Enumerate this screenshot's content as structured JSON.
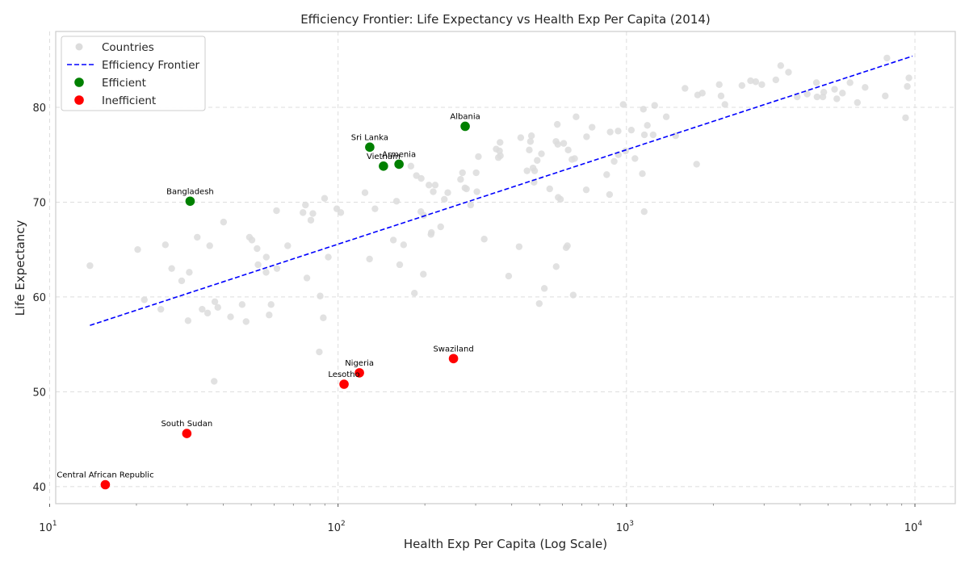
{
  "chart_data": {
    "type": "scatter",
    "title": "Efficiency Frontier: Life Expectancy vs Health Exp Per Capita (2014)",
    "xlabel": "Health Exp Per Capita (Log Scale)",
    "ylabel": "Life Expectancy",
    "x_scale": "log",
    "xlim": [
      10.5,
      13800
    ],
    "ylim": [
      38.2,
      88
    ],
    "x_ticks": [
      {
        "value": 10,
        "base": "10",
        "exp": "1"
      },
      {
        "value": 100,
        "base": "10",
        "exp": "2"
      },
      {
        "value": 1000,
        "base": "10",
        "exp": "3"
      },
      {
        "value": 10000,
        "base": "10",
        "exp": "4"
      }
    ],
    "y_ticks": [
      40,
      50,
      60,
      70,
      80
    ],
    "grid": true,
    "legend_position": "top-left",
    "legend": [
      {
        "label": "Countries",
        "kind": "point",
        "color": "#dcdcdc"
      },
      {
        "label": "Efficiency Frontier",
        "kind": "line",
        "color": "#0000ff"
      },
      {
        "label": "Efficient",
        "kind": "point",
        "color": "#008000"
      },
      {
        "label": "Inefficient",
        "kind": "point",
        "color": "#ff0000"
      }
    ],
    "series": [
      {
        "name": "Countries",
        "color": "#dcdcdc",
        "points": [
          [
            13.8,
            63.3
          ],
          [
            20.2,
            65.0
          ],
          [
            21.3,
            59.7
          ],
          [
            24.3,
            58.7
          ],
          [
            25.2,
            65.5
          ],
          [
            26.5,
            63.0
          ],
          [
            28.7,
            61.7
          ],
          [
            30.2,
            57.5
          ],
          [
            30.5,
            62.6
          ],
          [
            32.5,
            66.3
          ],
          [
            33.8,
            58.7
          ],
          [
            35.3,
            58.3
          ],
          [
            35.9,
            65.4
          ],
          [
            37.2,
            51.1
          ],
          [
            37.4,
            59.5
          ],
          [
            38.3,
            58.9
          ],
          [
            40.1,
            67.9
          ],
          [
            42.4,
            57.9
          ],
          [
            46.5,
            59.2
          ],
          [
            48.0,
            57.4
          ],
          [
            49.3,
            66.3
          ],
          [
            50.3,
            66.0
          ],
          [
            52.4,
            65.1
          ],
          [
            52.8,
            63.4
          ],
          [
            56.3,
            62.6
          ],
          [
            56.4,
            64.2
          ],
          [
            57.7,
            58.1
          ],
          [
            58.6,
            59.2
          ],
          [
            61.2,
            69.1
          ],
          [
            61.4,
            63.0
          ],
          [
            66.9,
            65.4
          ],
          [
            75.6,
            68.9
          ],
          [
            77.1,
            69.7
          ],
          [
            78.0,
            62.0
          ],
          [
            80.5,
            68.1
          ],
          [
            81.8,
            68.8
          ],
          [
            86.1,
            54.2
          ],
          [
            86.7,
            60.1
          ],
          [
            88.9,
            57.8
          ],
          [
            89.8,
            70.4
          ],
          [
            92.5,
            64.2
          ],
          [
            99.0,
            69.3
          ],
          [
            102.2,
            68.9
          ],
          [
            124.0,
            71.0
          ],
          [
            128.6,
            64.0
          ],
          [
            134.3,
            69.3
          ],
          [
            155.5,
            66.0
          ],
          [
            159.5,
            70.1
          ],
          [
            163.6,
            63.4
          ],
          [
            168.8,
            65.5
          ],
          [
            178.9,
            73.8
          ],
          [
            184.0,
            60.4
          ],
          [
            186.9,
            72.8
          ],
          [
            193.7,
            69.0
          ],
          [
            194.2,
            72.5
          ],
          [
            197.6,
            62.4
          ],
          [
            198.3,
            68.6
          ],
          [
            206.6,
            71.8
          ],
          [
            210.0,
            66.6
          ],
          [
            210.7,
            66.8
          ],
          [
            213.8,
            71.1
          ],
          [
            217.2,
            71.8
          ],
          [
            226.9,
            67.4
          ],
          [
            233.6,
            70.3
          ],
          [
            240.1,
            71.0
          ],
          [
            266.0,
            72.4
          ],
          [
            270.0,
            73.1
          ],
          [
            275.4,
            71.5
          ],
          [
            278.8,
            71.4
          ],
          [
            288.2,
            69.7
          ],
          [
            301.2,
            73.1
          ],
          [
            303.0,
            71.1
          ],
          [
            306.6,
            74.8
          ],
          [
            321.2,
            66.1
          ],
          [
            353.4,
            75.6
          ],
          [
            359.6,
            74.7
          ],
          [
            362.9,
            75.4
          ],
          [
            364.4,
            76.3
          ],
          [
            365.4,
            74.9
          ],
          [
            390.4,
            62.2
          ],
          [
            424.4,
            65.3
          ],
          [
            429.9,
            76.8
          ],
          [
            452.0,
            73.3
          ],
          [
            460.3,
            75.5
          ],
          [
            464.5,
            76.4
          ],
          [
            468.4,
            77.0
          ],
          [
            474.2,
            73.6
          ],
          [
            478.0,
            72.1
          ],
          [
            480.4,
            73.3
          ],
          [
            490.3,
            74.4
          ],
          [
            498.4,
            59.3
          ],
          [
            507.2,
            75.1
          ],
          [
            519.1,
            60.9
          ],
          [
            541.8,
            71.4
          ],
          [
            569.6,
            76.4
          ],
          [
            570.6,
            63.2
          ],
          [
            575.7,
            78.2
          ],
          [
            577.9,
            76.1
          ],
          [
            579.7,
            70.5
          ],
          [
            590.4,
            70.3
          ],
          [
            605.8,
            76.2
          ],
          [
            617.6,
            65.2
          ],
          [
            623.9,
            65.4
          ],
          [
            627.9,
            75.5
          ],
          [
            646.9,
            74.5
          ],
          [
            653.7,
            60.2
          ],
          [
            661.0,
            74.6
          ],
          [
            668.8,
            79.0
          ],
          [
            725.3,
            71.3
          ],
          [
            727.1,
            76.9
          ],
          [
            759.8,
            77.9
          ],
          [
            853.9,
            72.9
          ],
          [
            873.7,
            70.8
          ],
          [
            878.0,
            77.4
          ],
          [
            906.3,
            74.3
          ],
          [
            935.4,
            77.5
          ],
          [
            937.2,
            75.0
          ],
          [
            974.2,
            80.3
          ],
          [
            992.9,
            75.4
          ],
          [
            1039.7,
            77.6
          ],
          [
            1070.0,
            74.6
          ],
          [
            1135.1,
            73.0
          ],
          [
            1144.4,
            79.8
          ],
          [
            1151.9,
            69.0
          ],
          [
            1153.7,
            77.1
          ],
          [
            1181.4,
            78.1
          ],
          [
            1237.2,
            77.1
          ],
          [
            1252.1,
            80.2
          ],
          [
            1373.7,
            79.0
          ],
          [
            1480.4,
            77.0
          ],
          [
            1595.5,
            82.0
          ],
          [
            1750.2,
            74.0
          ],
          [
            1764.7,
            81.3
          ],
          [
            1831.9,
            81.5
          ],
          [
            2097.0,
            82.4
          ],
          [
            2127.4,
            81.2
          ],
          [
            2193.8,
            80.3
          ],
          [
            2513.6,
            82.3
          ],
          [
            2692.9,
            82.8
          ],
          [
            2805.8,
            82.7
          ],
          [
            2946.1,
            82.4
          ],
          [
            3295.1,
            82.9
          ],
          [
            3425.5,
            84.4
          ],
          [
            3645.0,
            83.7
          ],
          [
            3907.1,
            81.1
          ],
          [
            4232.0,
            81.4
          ],
          [
            4554.9,
            82.6
          ],
          [
            4578.0,
            81.1
          ],
          [
            4796.1,
            81.1
          ],
          [
            4830.7,
            81.6
          ],
          [
            5265.4,
            81.9
          ],
          [
            5360.3,
            80.9
          ],
          [
            5607.4,
            81.5
          ],
          [
            5956.8,
            82.6
          ],
          [
            6318.1,
            80.5
          ],
          [
            6719.6,
            82.1
          ],
          [
            7890.7,
            81.2
          ],
          [
            7998.0,
            85.2
          ],
          [
            9281.3,
            78.9
          ],
          [
            9410.4,
            82.2
          ],
          [
            9530.6,
            83.1
          ]
        ]
      },
      {
        "name": "Efficiency Frontier",
        "color": "#0000ff",
        "points": [
          [
            13.8,
            57.0
          ],
          [
            9800,
            85.4
          ]
        ]
      },
      {
        "name": "Efficient",
        "color": "#008000",
        "points": [
          {
            "x": 30.7,
            "y": 70.1,
            "label": "Bangladesh"
          },
          {
            "x": 128.8,
            "y": 75.8,
            "label": "Sri Lanka"
          },
          {
            "x": 143.7,
            "y": 73.8,
            "label": "Vietnam"
          },
          {
            "x": 162.7,
            "y": 74.0,
            "label": "Armenia"
          },
          {
            "x": 275.9,
            "y": 78.0,
            "label": "Albania"
          }
        ]
      },
      {
        "name": "Inefficient",
        "color": "#ff0000",
        "points": [
          {
            "x": 15.6,
            "y": 40.2,
            "label": "Central African Republic"
          },
          {
            "x": 29.9,
            "y": 45.6,
            "label": "South Sudan"
          },
          {
            "x": 104.9,
            "y": 50.8,
            "label": "Lesotho"
          },
          {
            "x": 118.6,
            "y": 52.0,
            "label": "Nigeria"
          },
          {
            "x": 251.3,
            "y": 53.5,
            "label": "Swaziland"
          }
        ]
      }
    ]
  }
}
